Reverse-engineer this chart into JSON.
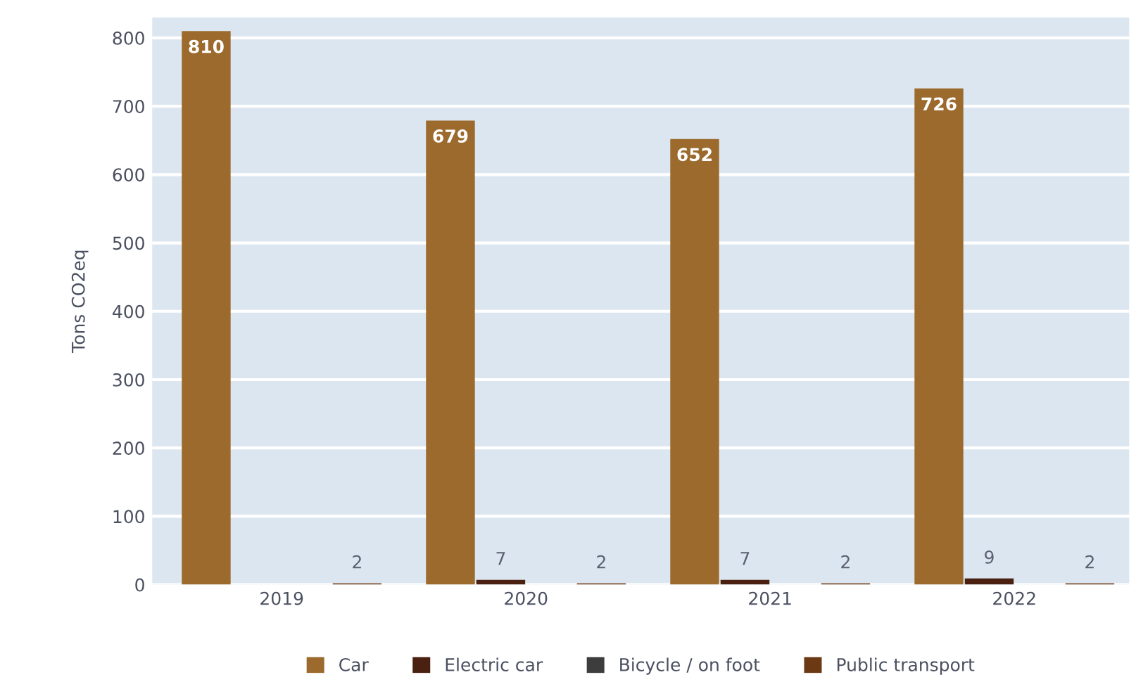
{
  "chart_data": {
    "type": "bar",
    "ylabel": "Tons CO2eq",
    "categories": [
      "2019",
      "2020",
      "2021",
      "2022"
    ],
    "series": [
      {
        "name": "Car",
        "color": "#9b6a2c",
        "values": [
          810,
          679,
          652,
          726
        ]
      },
      {
        "name": "Electric car",
        "color": "#4a2010",
        "values": [
          null,
          7,
          7,
          9
        ]
      },
      {
        "name": "Bicycle / on foot",
        "color": "#3d3d3d",
        "values": [
          null,
          null,
          null,
          null
        ]
      },
      {
        "name": "Public transport",
        "color": "#6b3a14",
        "values": [
          2,
          2,
          2,
          2
        ]
      }
    ],
    "ylim": [
      0,
      830
    ],
    "yticks": [
      0,
      100,
      200,
      300,
      400,
      500,
      600,
      700,
      800
    ],
    "grid": "y",
    "legend": "bottom",
    "data_labels": true
  }
}
